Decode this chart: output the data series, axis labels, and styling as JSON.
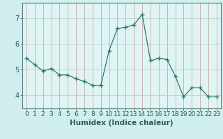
{
  "x": [
    0,
    1,
    2,
    3,
    4,
    5,
    6,
    7,
    8,
    9,
    10,
    11,
    12,
    13,
    14,
    15,
    16,
    17,
    18,
    19,
    20,
    21,
    22,
    23
  ],
  "y": [
    5.45,
    5.2,
    4.95,
    5.05,
    4.8,
    4.8,
    4.65,
    4.55,
    4.4,
    4.4,
    5.75,
    6.6,
    6.65,
    6.75,
    7.15,
    5.35,
    5.45,
    5.4,
    4.75,
    3.95,
    4.3,
    4.3,
    3.95,
    3.95
  ],
  "line_color": "#2a7a6a",
  "marker": "+",
  "marker_size": 4,
  "bg_color": "#d0eeee",
  "grid_color": "#b8d8d8",
  "plot_bg_color": "#e0f4f4",
  "xlabel": "Humidex (Indice chaleur)",
  "xlim": [
    -0.5,
    23.5
  ],
  "ylim": [
    3.5,
    7.6
  ],
  "yticks": [
    4,
    5,
    6,
    7
  ],
  "xticks": [
    0,
    1,
    2,
    3,
    4,
    5,
    6,
    7,
    8,
    9,
    10,
    11,
    12,
    13,
    14,
    15,
    16,
    17,
    18,
    19,
    20,
    21,
    22,
    23
  ],
  "xlabel_fontsize": 7.5,
  "tick_fontsize": 6.5,
  "ytick_fontsize": 7
}
